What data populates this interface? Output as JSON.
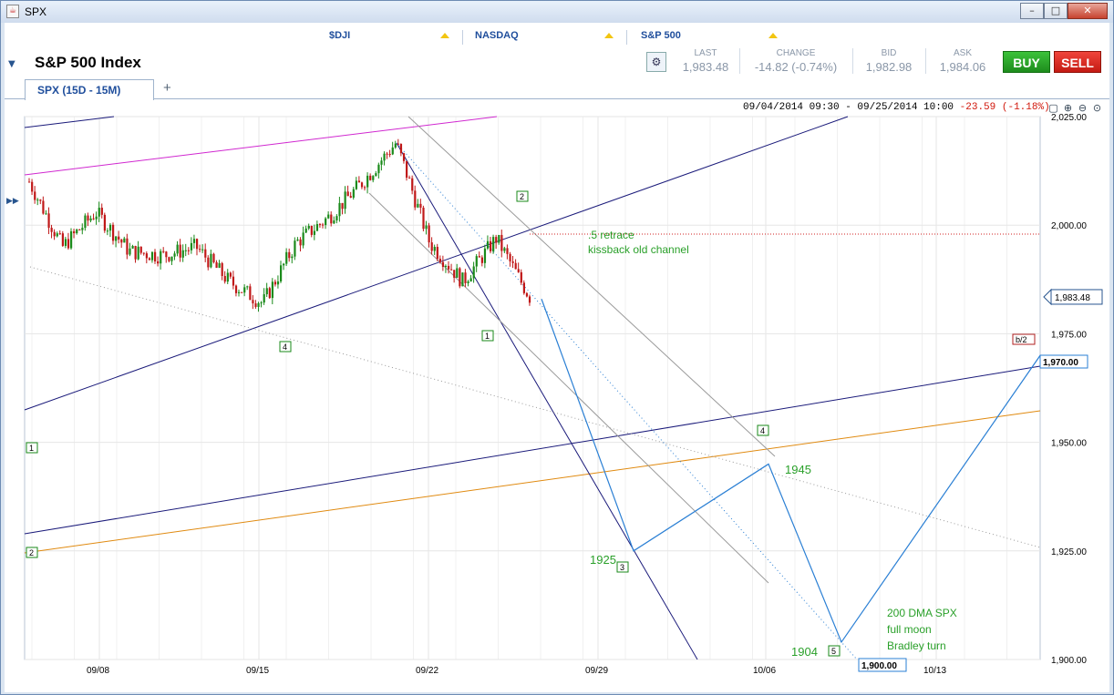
{
  "window": {
    "title": "SPX",
    "icon": "java-icon",
    "minimize": "–",
    "maximize": "□",
    "close": "✕"
  },
  "tickers": [
    {
      "label": "$DJI"
    },
    {
      "label": "NASDAQ"
    },
    {
      "label": "S&P 500"
    }
  ],
  "header": {
    "title": "S&P 500 Index",
    "quote": {
      "last_label": "LAST",
      "last": "1,983.48",
      "change_label": "CHANGE",
      "change": "-14.82 (-0.74%)",
      "bid_label": "BID",
      "bid": "1,982.98",
      "ask_label": "ASK",
      "ask": "1,984.06"
    },
    "buy_label": "BUY",
    "sell_label": "SELL"
  },
  "tab": {
    "label": "SPX (15D - 15M)",
    "add_label": "+"
  },
  "chart_info": {
    "range": "09/04/2014 09:30 - 09/25/2014 10:00",
    "change": "-23.59 (-1.18%)"
  },
  "chart_data": {
    "type": "line",
    "symbol": "SPX",
    "x_ticks": [
      "09/08",
      "09/15",
      "09/22",
      "09/29",
      "10/06",
      "10/13"
    ],
    "y_ticks": [
      "2,025.00",
      "2,000.00",
      "1,975.00",
      "1,950.00",
      "1,925.00",
      "1,900.00"
    ],
    "ylim": [
      1900,
      2025
    ],
    "last_price_label": "1,983.48",
    "price_path": [
      [
        "09/04",
        2010
      ],
      [
        "09/05",
        1995
      ],
      [
        "09/08",
        2003
      ],
      [
        "09/09",
        1994
      ],
      [
        "09/10",
        1993
      ],
      [
        "09/11",
        1995
      ],
      [
        "09/12",
        1987
      ],
      [
        "09/15",
        1982
      ],
      [
        "09/16",
        1996
      ],
      [
        "09/17",
        2002
      ],
      [
        "09/18",
        2010
      ],
      [
        "09/19",
        2019
      ],
      [
        "09/22",
        1996
      ],
      [
        "09/23",
        1987
      ],
      [
        "09/24",
        1997
      ],
      [
        "09/25",
        1983.48
      ]
    ],
    "projection": [
      {
        "label": "1925",
        "value": 1925
      },
      {
        "label": "1945",
        "value": 1945
      },
      {
        "label": "1904",
        "value": 1904
      },
      {
        "label": "1,970.00",
        "value": 1970
      }
    ],
    "annotations": [
      ".5 retrace",
      "kissback old channel",
      "200 DMA SPX",
      "full moon",
      "Bradley turn"
    ],
    "wave_markers": [
      "1",
      "2",
      "3",
      "4",
      "5",
      "b/2"
    ],
    "price_boxes": [
      "1,900.00",
      "1,970.00"
    ]
  },
  "colors": {
    "up_candle": "#1a8a1a",
    "down_candle": "#c01818",
    "projection": "#2a7fd4",
    "annotation": "#2aa02a",
    "magenta_line": "#d028d0",
    "navy_line": "#1a1a7a",
    "orange_line": "#e08a10"
  }
}
